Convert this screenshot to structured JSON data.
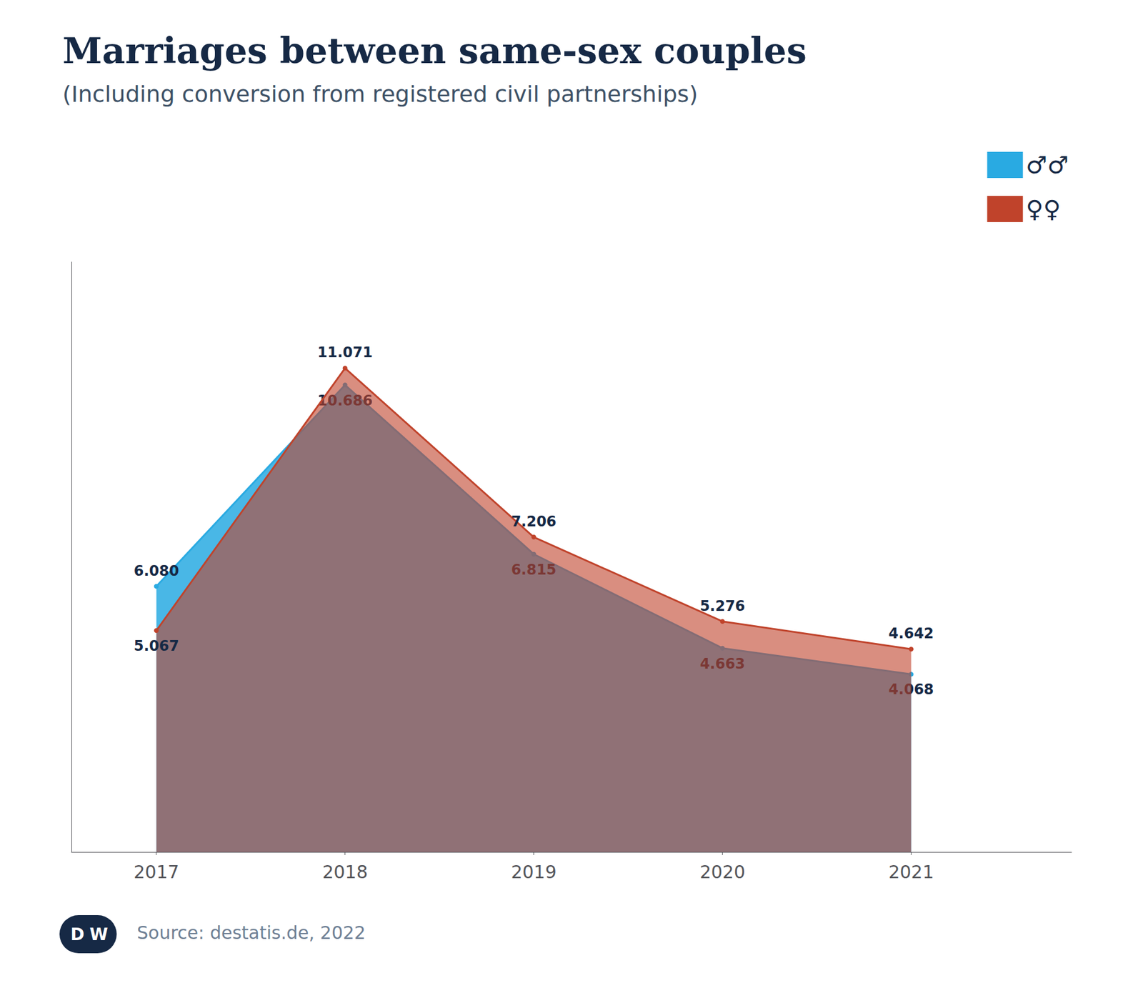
{
  "chart_data": {
    "type": "area",
    "title": "Marriages between same-sex couples",
    "subtitle": "(Including conversion from registered civil partnerships)",
    "x": [
      2017,
      2018,
      2019,
      2020,
      2021
    ],
    "series": [
      {
        "name": "♂♂",
        "color": "#29aae2",
        "values": [
          6080,
          10686,
          6815,
          4663,
          4068
        ],
        "value_labels": [
          "6.080",
          "10.686",
          "6.815",
          "4.663",
          "4.068"
        ]
      },
      {
        "name": "♀♀",
        "color": "#c0432b",
        "values": [
          5067,
          11071,
          7206,
          5276,
          4642
        ],
        "value_labels": [
          "5.067",
          "11.071",
          "7.206",
          "5.276",
          "4.642"
        ]
      }
    ],
    "xlim": [
      2016.55,
      2021.85
    ],
    "xticks": [
      2017,
      2018,
      2019,
      2020,
      2021
    ],
    "ylim": [
      0,
      13500
    ],
    "yticks": [],
    "tick_labels": "x",
    "grid": false,
    "legend": "upper right",
    "data_labels": true,
    "source": "Source: destatis.de, 2022",
    "logo": [
      "D",
      "W"
    ]
  }
}
